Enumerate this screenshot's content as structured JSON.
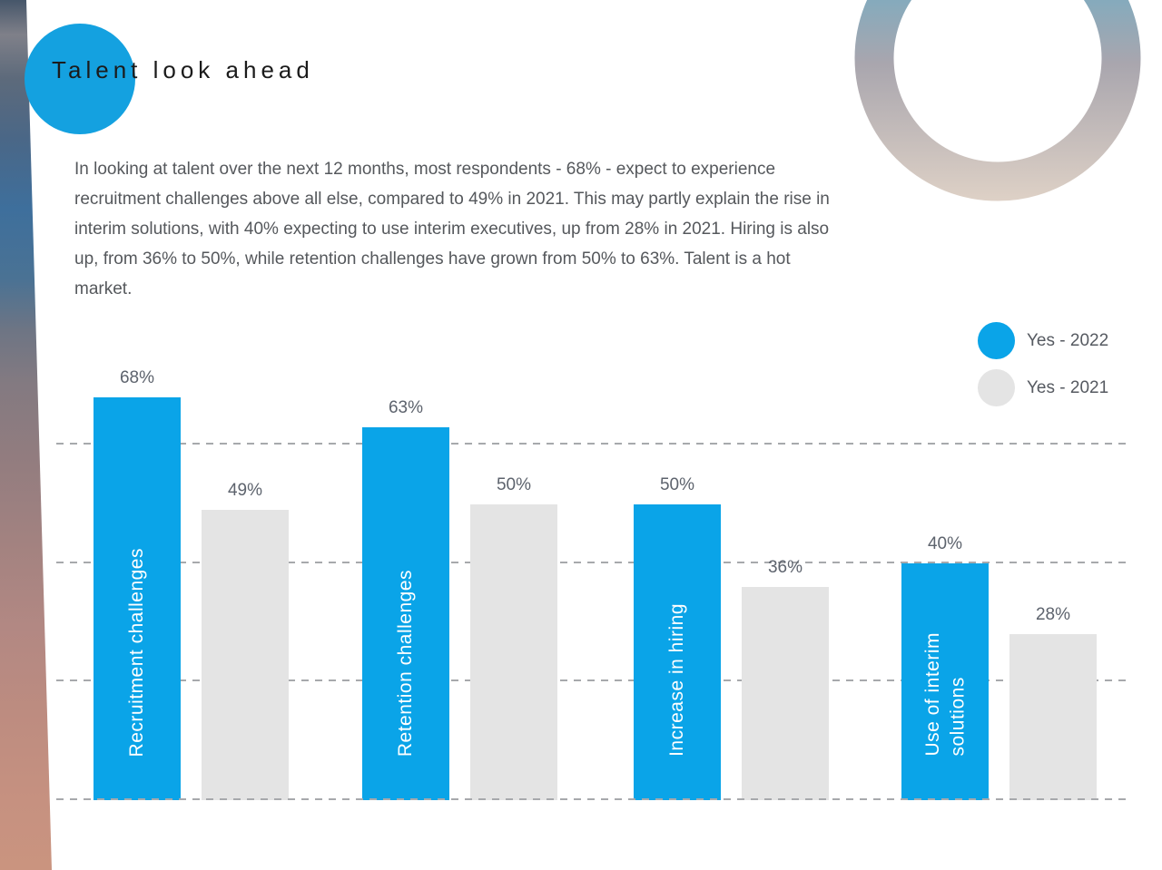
{
  "page": {
    "title": "Talent look ahead",
    "body_text": "In looking at talent over the next 12 months, most respondents - 68% - expect to experience recruitment challenges above all else, compared to 49% in 2021. This may partly explain the rise in interim solutions, with 40% expecting to use interim executives, up from 28% in 2021. Hiring is also up, from 36% to 50%, while retention challenges have grown from 50% to 63%. Talent is a hot market."
  },
  "colors": {
    "accent_blue": "#0aa4e8",
    "bar_gray": "#e4e4e4",
    "title_circle_blue": "#14a1e0",
    "title_text": "#1b1b1b",
    "body_text": "#55585c",
    "value_label_text": "#5d636d",
    "gridline": "#a7a9ac"
  },
  "decor": {
    "ring_gradient": {
      "top": "#55b0d0",
      "middle": "#a9a6ae",
      "bottom": "#ded1c6"
    }
  },
  "legend": {
    "items": [
      {
        "label": "Yes - 2022",
        "color": "#0aa4e8"
      },
      {
        "label": "Yes - 2021",
        "color": "#e4e4e4"
      }
    ]
  },
  "chart_data": {
    "type": "bar",
    "title": "Talent look ahead",
    "categories": [
      "Recruitment challenges",
      "Retention challenges",
      "Increase in hiring",
      "Use of interim\nsolutions"
    ],
    "series": [
      {
        "name": "Yes - 2022",
        "color": "#0aa4e8",
        "values": [
          68,
          63,
          50,
          40
        ]
      },
      {
        "name": "Yes - 2021",
        "color": "#e4e4e4",
        "values": [
          49,
          50,
          36,
          28
        ]
      }
    ],
    "value_suffix": "%",
    "ylim": [
      0,
      70
    ],
    "gridline_values": [
      20,
      40,
      60
    ],
    "grid": "dashed-horizontal",
    "legend_position": "top-right",
    "value_labels_shown": true,
    "axis_tick_labels_shown": false,
    "category_labels_position": "inside-2022-bars-vertical"
  }
}
